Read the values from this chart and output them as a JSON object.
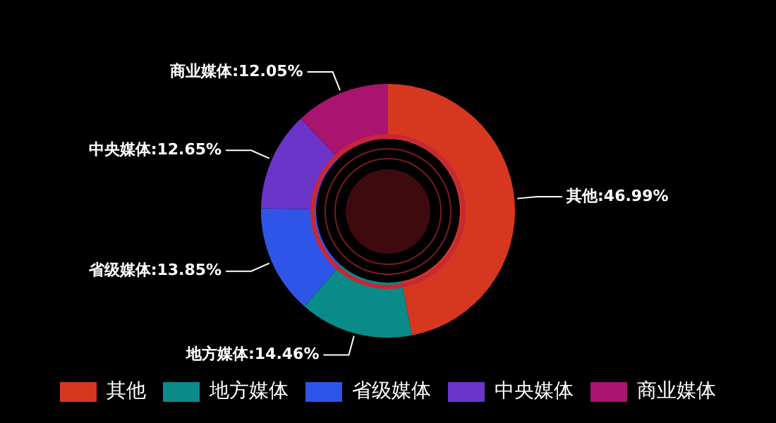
{
  "chart_data": {
    "type": "donut",
    "categories": [
      "其他",
      "地方媒体",
      "省级媒体",
      "中央媒体",
      "商业媒体"
    ],
    "values": [
      46.99,
      14.46,
      13.85,
      12.65,
      12.05
    ],
    "colors": [
      "#d6381f",
      "#0b8a8a",
      "#2f55e8",
      "#6b35c9",
      "#a8146e"
    ],
    "value_labels": [
      ":46.99%",
      ":14.46%",
      ":13.85%",
      ":12.65%",
      ":12.05%"
    ],
    "legend": "bottom"
  }
}
